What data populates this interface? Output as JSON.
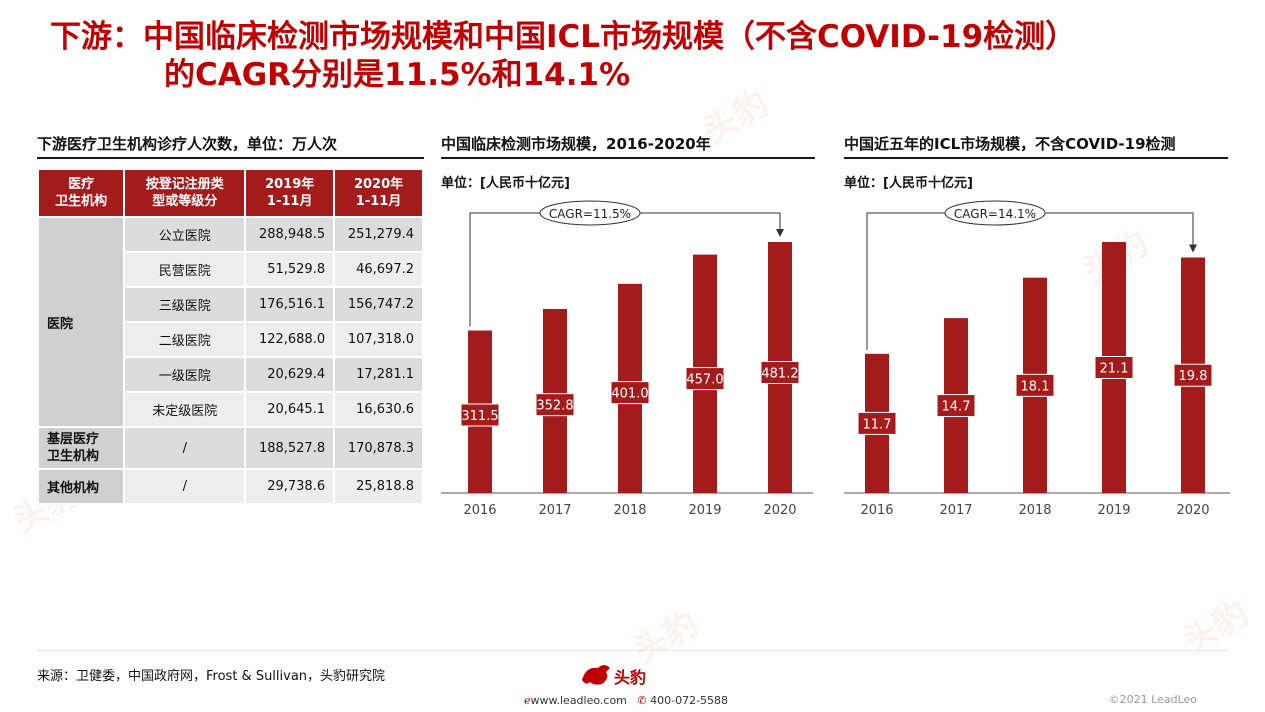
{
  "title": {
    "line1": "下游：中国临床检测市场规模和中国ICL市场规模（不含COVID-19检测）",
    "line2": "的CAGR分别是11.5%和14.1%"
  },
  "table_panel": {
    "title": "下游医疗卫生机构诊疗人次数，单位：万人次",
    "headers": [
      "医疗\n卫生机构",
      "按登记注册类\n型或等级分",
      "2019年\n1-11月",
      "2020年\n1-11月"
    ],
    "hospital_label": "医院",
    "hospital_rows": [
      {
        "type": "公立医院",
        "y2019": "288,948.5",
        "y2020": "251,279.4"
      },
      {
        "type": "民营医院",
        "y2019": "51,529.8",
        "y2020": "46,697.2"
      },
      {
        "type": "三级医院",
        "y2019": "176,516.1",
        "y2020": "156,747.2"
      },
      {
        "type": "二级医院",
        "y2019": "122,688.0",
        "y2020": "107,318.0"
      },
      {
        "type": "一级医院",
        "y2019": "20,629.4",
        "y2020": "17,281.1"
      },
      {
        "type": "未定级医院",
        "y2019": "20,645.1",
        "y2020": "16,630.6"
      }
    ],
    "other_rows": [
      {
        "label": "基层医疗\n卫生机构",
        "type": "/",
        "y2019": "188,527.8",
        "y2020": "170,878.3"
      },
      {
        "label": "其他机构",
        "type": "/",
        "y2019": "29,738.6",
        "y2020": "25,818.8"
      }
    ]
  },
  "chart_data": [
    {
      "type": "bar",
      "title": "中国临床检测市场规模，2016-2020年",
      "unit": "单位：[人民币十亿元]",
      "categories": [
        "2016",
        "2017",
        "2018",
        "2019",
        "2020"
      ],
      "values": [
        311.5,
        352.8,
        401.0,
        457.0,
        481.2
      ],
      "labels": [
        "311.5",
        "352.8",
        "401.0",
        "457.0",
        "481.2"
      ],
      "annotation": "CAGR=11.5%",
      "bar_color": "#a31b1b"
    },
    {
      "type": "bar",
      "title": "中国近五年的ICL市场规模，不含COVID-19检测",
      "unit": "单位：[人民币十亿元]",
      "categories": [
        "2016",
        "2017",
        "2018",
        "2019",
        "2020"
      ],
      "values": [
        11.7,
        14.7,
        18.1,
        21.1,
        19.8
      ],
      "labels": [
        "11.7",
        "14.7",
        "18.1",
        "21.1",
        "19.8"
      ],
      "annotation": "CAGR=14.1%",
      "bar_color": "#a31b1b"
    }
  ],
  "footer": {
    "source": "来源：卫健委，中国政府网，Frost & Sullivan，头豹研究院",
    "logo": "头豹",
    "website": "www.leadleo.com",
    "phone": "400-072-5588",
    "copyright": "©2021 LeadLeo"
  },
  "watermark_text": "头豹"
}
